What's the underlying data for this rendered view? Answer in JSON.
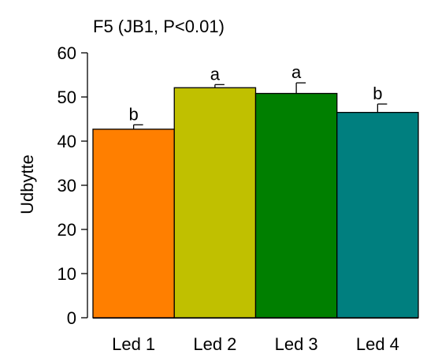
{
  "chart_data": {
    "type": "bar",
    "title": "F5 (JB1, P<0.01)",
    "xlabel": "",
    "ylabel": "Udbytte",
    "ylim": [
      0,
      60
    ],
    "yticks": [
      0,
      10,
      20,
      30,
      40,
      50,
      60
    ],
    "grid": false,
    "categories": [
      "Led 1",
      "Led 2",
      "Led 3",
      "Led 4"
    ],
    "values": [
      42.7,
      52.1,
      50.8,
      46.5
    ],
    "error_upper": [
      1.0,
      0.7,
      2.4,
      1.9
    ],
    "significance_letters": [
      "b",
      "a",
      "a",
      "b"
    ],
    "colors": [
      "#ff7f00",
      "#c0c000",
      "#007f00",
      "#007f7f"
    ]
  }
}
